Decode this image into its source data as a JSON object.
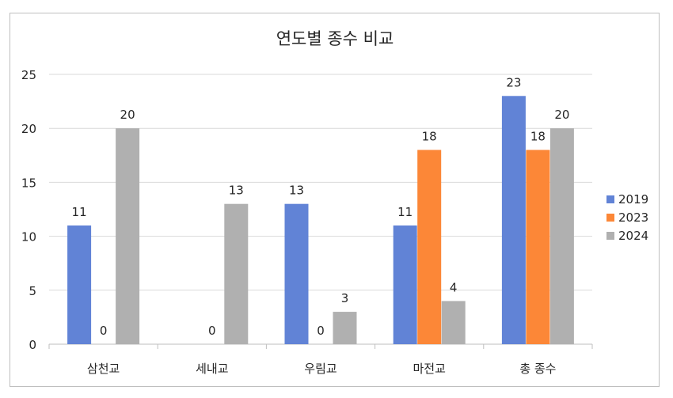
{
  "chart_data": {
    "type": "bar",
    "title": "연도별 종수 비교",
    "xlabel": "",
    "ylabel": "",
    "categories": [
      "삼천교",
      "세내교",
      "우림교",
      "마전교",
      "총 종수"
    ],
    "series": [
      {
        "name": "2019",
        "color": "#6183d6",
        "values": [
          11,
          0,
          13,
          11,
          23
        ]
      },
      {
        "name": "2023",
        "color": "#fc8737",
        "values": [
          0,
          0,
          0,
          18,
          18
        ]
      },
      {
        "name": "2024",
        "color": "#b0b0b0",
        "values": [
          20,
          13,
          3,
          4,
          20
        ]
      }
    ],
    "data_labels": [
      [
        "11",
        "0",
        "13",
        "11",
        "23"
      ],
      [
        "0",
        "0",
        "0",
        "18",
        "18"
      ],
      [
        "20",
        "13",
        "3",
        "4",
        "20"
      ]
    ],
    "hidden_labels": [
      [
        false,
        true,
        false,
        false,
        false
      ],
      [
        false,
        false,
        false,
        false,
        false
      ],
      [
        false,
        false,
        false,
        false,
        false
      ]
    ],
    "ylim": [
      0,
      25
    ],
    "yticks": [
      0,
      5,
      10,
      15,
      20,
      25
    ],
    "ytick_labels": [
      "0",
      "5",
      "10",
      "15",
      "20",
      "25"
    ],
    "grid": true,
    "legend_position": "right"
  }
}
